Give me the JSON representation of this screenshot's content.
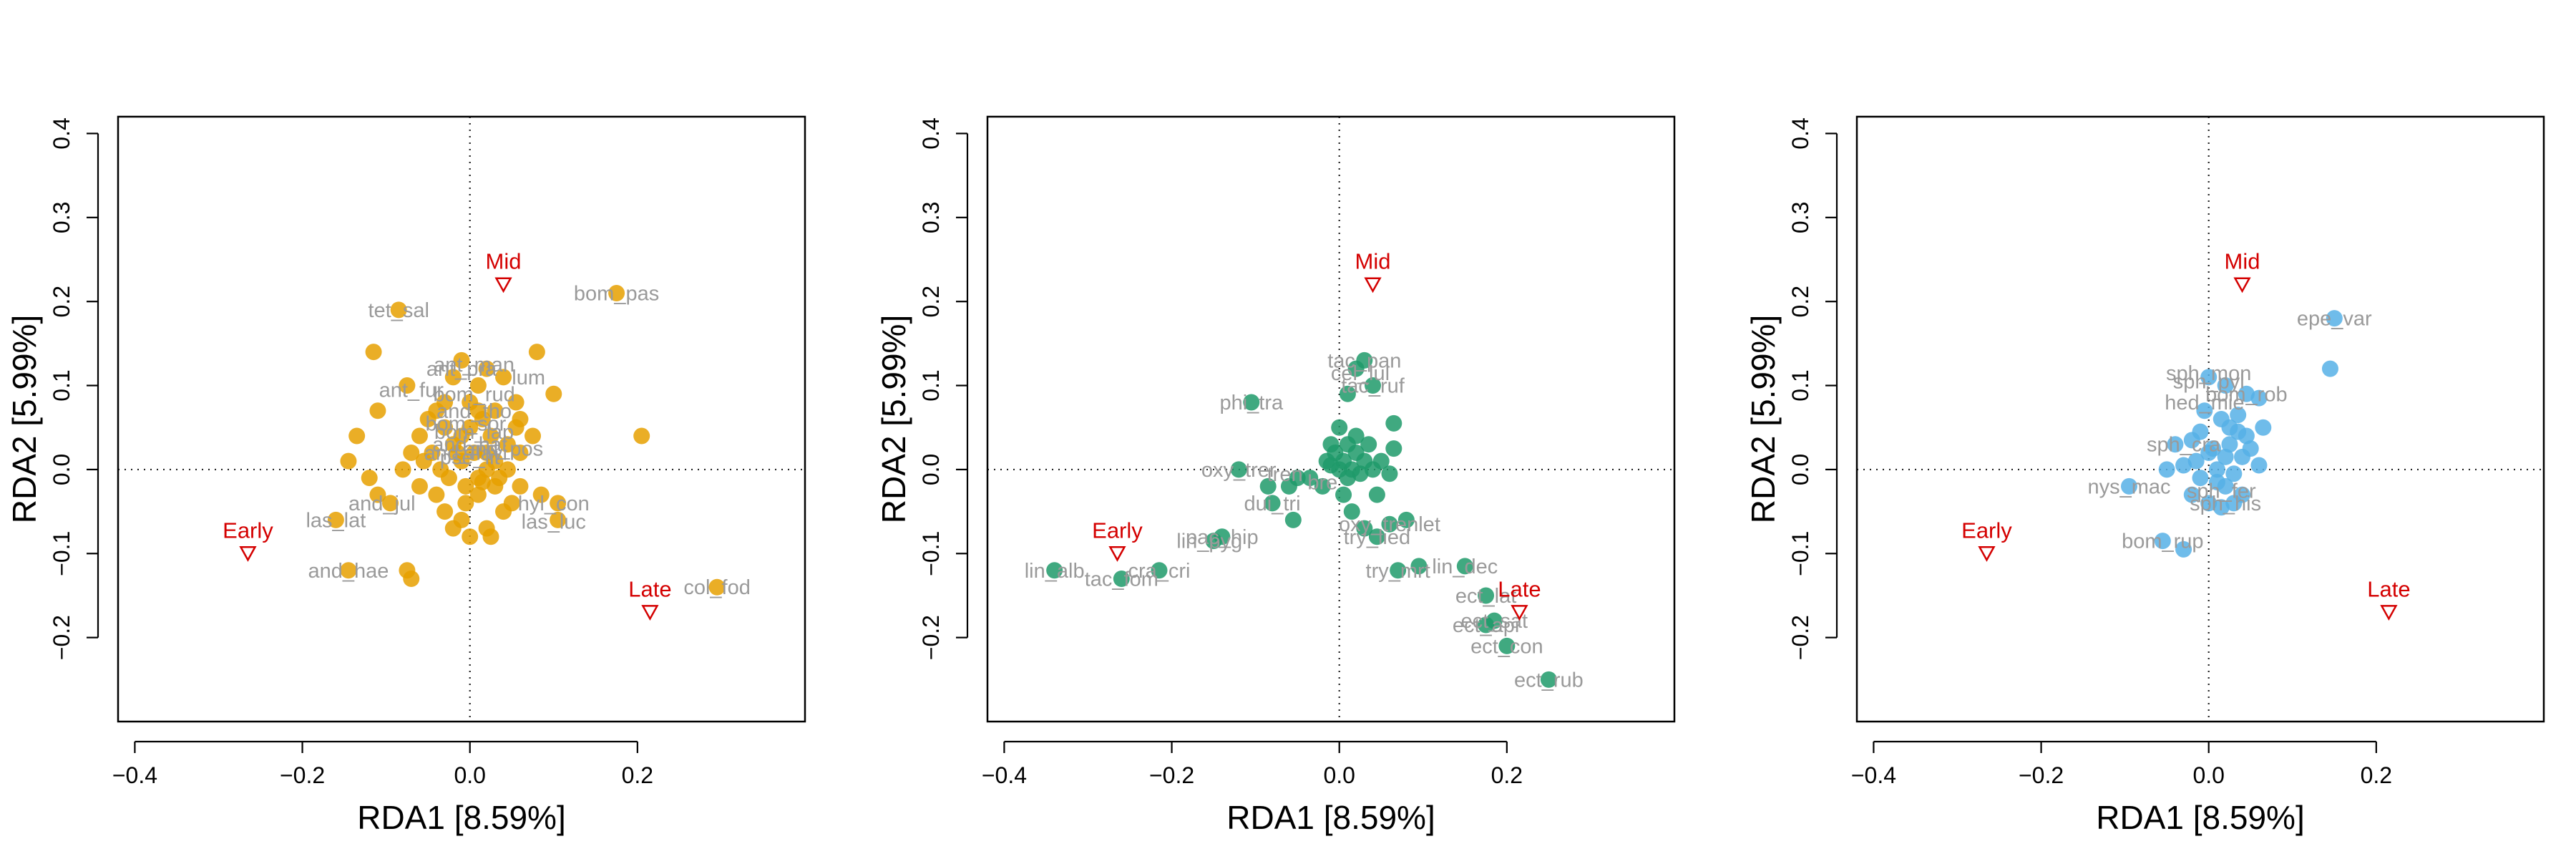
{
  "colors": {
    "site": "#d40000",
    "species_label": "#9a9a9a",
    "axis": "#000000"
  },
  "chart_data": [
    {
      "type": "scatter",
      "xlabel": "RDA1 [8.59%]",
      "ylabel": "RDA2 [5.99%]",
      "xlim": [
        -0.42,
        0.4
      ],
      "ylim": [
        -0.3,
        0.42
      ],
      "xticks": [
        -0.4,
        -0.2,
        0.0,
        0.2
      ],
      "xtick_labels": [
        "−0.4",
        "−0.2",
        "0.0",
        "0.2"
      ],
      "yticks": [
        -0.2,
        -0.1,
        0.0,
        0.1,
        0.2,
        0.3,
        0.4
      ],
      "ytick_labels": [
        "−0.2",
        "−0.1",
        "0.0",
        "0.1",
        "0.2",
        "0.3",
        "0.4"
      ],
      "point_color": "#e6a000",
      "sites": [
        {
          "label": "Early",
          "x": -0.265,
          "y": -0.1
        },
        {
          "label": "Mid",
          "x": 0.04,
          "y": 0.22
        },
        {
          "label": "Late",
          "x": 0.215,
          "y": -0.17
        }
      ],
      "points": [
        [
          -0.085,
          0.19
        ],
        [
          0.175,
          0.21
        ],
        [
          -0.115,
          0.14
        ],
        [
          -0.075,
          0.1
        ],
        [
          -0.11,
          0.07
        ],
        [
          -0.135,
          0.04
        ],
        [
          -0.145,
          0.01
        ],
        [
          -0.12,
          -0.01
        ],
        [
          -0.11,
          -0.03
        ],
        [
          -0.095,
          -0.04
        ],
        [
          -0.16,
          -0.06
        ],
        [
          -0.145,
          -0.12
        ],
        [
          -0.075,
          -0.12
        ],
        [
          -0.07,
          -0.13
        ],
        [
          0.08,
          0.14
        ],
        [
          0.1,
          0.09
        ],
        [
          0.205,
          0.04
        ],
        [
          0.295,
          -0.14
        ],
        [
          0.105,
          -0.04
        ],
        [
          0.105,
          -0.06
        ],
        [
          0.085,
          -0.03
        ],
        [
          0.04,
          0.11
        ],
        [
          0.055,
          0.08
        ],
        [
          0.06,
          0.06
        ],
        [
          0.075,
          0.04
        ],
        [
          0.06,
          0.02
        ],
        [
          0.045,
          0.03
        ],
        [
          0.03,
          0.01
        ],
        [
          0.02,
          0.0
        ],
        [
          0.01,
          -0.01
        ],
        [
          -0.01,
          0.01
        ],
        [
          -0.02,
          0.03
        ],
        [
          -0.03,
          0.05
        ],
        [
          -0.04,
          0.07
        ],
        [
          -0.05,
          0.06
        ],
        [
          -0.06,
          0.04
        ],
        [
          -0.07,
          0.02
        ],
        [
          -0.08,
          0.0
        ],
        [
          -0.06,
          -0.02
        ],
        [
          -0.04,
          -0.03
        ],
        [
          -0.03,
          -0.05
        ],
        [
          -0.02,
          -0.07
        ],
        [
          -0.01,
          -0.06
        ],
        [
          0.0,
          -0.08
        ],
        [
          0.02,
          -0.07
        ],
        [
          0.025,
          -0.08
        ],
        [
          0.04,
          -0.05
        ],
        [
          0.05,
          -0.04
        ],
        [
          0.06,
          -0.02
        ],
        [
          0.03,
          -0.02
        ],
        [
          0.01,
          -0.03
        ],
        [
          -0.005,
          -0.02
        ],
        [
          0.0,
          0.08
        ],
        [
          0.01,
          0.1
        ],
        [
          0.02,
          0.12
        ],
        [
          -0.01,
          0.13
        ],
        [
          -0.02,
          0.11
        ],
        [
          0.0,
          0.05
        ],
        [
          0.015,
          0.06
        ],
        [
          0.025,
          0.04
        ],
        [
          -0.015,
          0.02
        ],
        [
          -0.035,
          0.0
        ],
        [
          0.035,
          -0.01
        ],
        [
          0.005,
          0.02
        ],
        [
          -0.025,
          -0.01
        ],
        [
          0.045,
          0.0
        ],
        [
          -0.045,
          0.02
        ],
        [
          0.015,
          -0.015
        ],
        [
          -0.01,
          0.04
        ],
        [
          0.03,
          0.07
        ],
        [
          -0.03,
          0.08
        ],
        [
          0.055,
          0.05
        ],
        [
          -0.055,
          0.01
        ],
        [
          0.01,
          0.07
        ],
        [
          -0.005,
          -0.04
        ],
        [
          0.02,
          0.02
        ]
      ],
      "species_labels": [
        {
          "text": "tet_sal",
          "x": -0.085,
          "y": 0.19
        },
        {
          "text": "bom_pas",
          "x": 0.175,
          "y": 0.21
        },
        {
          "text": "ant_man",
          "x": 0.005,
          "y": 0.125
        },
        {
          "text": "ant_pra",
          "x": -0.01,
          "y": 0.12
        },
        {
          "text": "lum",
          "x": 0.07,
          "y": 0.11
        },
        {
          "text": "ant_fur",
          "x": -0.07,
          "y": 0.095
        },
        {
          "text": "bom_rud",
          "x": 0.005,
          "y": 0.09
        },
        {
          "text": "and_tho",
          "x": 0.005,
          "y": 0.07
        },
        {
          "text": "bom_sor",
          "x": -0.005,
          "y": 0.055
        },
        {
          "text": "bom_lap",
          "x": 0.005,
          "y": 0.045
        },
        {
          "text": "and_hat",
          "x": 0.0,
          "y": 0.03
        },
        {
          "text": "and_flavi",
          "x": -0.005,
          "y": 0.02
        },
        {
          "text": "and_pos",
          "x": 0.04,
          "y": 0.025
        },
        {
          "text": "pse_lit",
          "x": 0.0,
          "y": 0.015
        },
        {
          "text": "and_jul",
          "x": -0.105,
          "y": -0.04
        },
        {
          "text": "las_lat",
          "x": -0.16,
          "y": -0.06
        },
        {
          "text": "hyl_con",
          "x": 0.1,
          "y": -0.04
        },
        {
          "text": "las_luc",
          "x": 0.1,
          "y": -0.062
        },
        {
          "text": "and_hae",
          "x": -0.145,
          "y": -0.12
        },
        {
          "text": "col_fod",
          "x": 0.295,
          "y": -0.14
        }
      ]
    },
    {
      "type": "scatter",
      "xlabel": "RDA1 [8.59%]",
      "ylabel": "RDA2 [5.99%]",
      "xlim": [
        -0.42,
        0.4
      ],
      "ylim": [
        -0.3,
        0.42
      ],
      "xticks": [
        -0.4,
        -0.2,
        0.0,
        0.2
      ],
      "xtick_labels": [
        "−0.4",
        "−0.2",
        "0.0",
        "0.2"
      ],
      "yticks": [
        -0.2,
        -0.1,
        0.0,
        0.1,
        0.2,
        0.3,
        0.4
      ],
      "ytick_labels": [
        "−0.2",
        "−0.1",
        "0.0",
        "0.1",
        "0.2",
        "0.3",
        "0.4"
      ],
      "point_color": "#1f9a6a",
      "sites": [
        {
          "label": "Early",
          "x": -0.265,
          "y": -0.1
        },
        {
          "label": "Mid",
          "x": 0.04,
          "y": 0.22
        },
        {
          "label": "Late",
          "x": 0.215,
          "y": -0.17
        }
      ],
      "points": [
        [
          -0.105,
          0.08
        ],
        [
          0.03,
          0.13
        ],
        [
          0.02,
          0.12
        ],
        [
          0.04,
          0.1
        ],
        [
          0.01,
          0.09
        ],
        [
          0.0,
          0.05
        ],
        [
          -0.01,
          0.03
        ],
        [
          0.01,
          0.03
        ],
        [
          0.02,
          0.02
        ],
        [
          0.005,
          0.01
        ],
        [
          -0.01,
          0.005
        ],
        [
          0.015,
          0.0
        ],
        [
          0.065,
          0.055
        ],
        [
          0.065,
          0.025
        ],
        [
          0.06,
          -0.005
        ],
        [
          -0.035,
          -0.01
        ],
        [
          -0.05,
          -0.01
        ],
        [
          -0.02,
          -0.02
        ],
        [
          -0.06,
          -0.02
        ],
        [
          -0.085,
          -0.02
        ],
        [
          -0.12,
          0.0
        ],
        [
          -0.08,
          -0.04
        ],
        [
          -0.055,
          -0.06
        ],
        [
          0.015,
          -0.05
        ],
        [
          0.03,
          -0.07
        ],
        [
          0.045,
          -0.08
        ],
        [
          0.06,
          -0.065
        ],
        [
          0.08,
          -0.06
        ],
        [
          0.095,
          -0.115
        ],
        [
          0.07,
          -0.12
        ],
        [
          0.15,
          -0.115
        ],
        [
          0.175,
          -0.15
        ],
        [
          0.175,
          -0.185
        ],
        [
          0.185,
          -0.18
        ],
        [
          0.2,
          -0.21
        ],
        [
          0.25,
          -0.25
        ],
        [
          -0.34,
          -0.12
        ],
        [
          -0.26,
          -0.13
        ],
        [
          -0.215,
          -0.12
        ],
        [
          -0.14,
          -0.08
        ],
        [
          -0.15,
          -0.085
        ],
        [
          0.0,
          0.0
        ],
        [
          0.01,
          -0.01
        ],
        [
          -0.005,
          0.02
        ],
        [
          0.03,
          0.01
        ],
        [
          0.025,
          -0.005
        ],
        [
          0.04,
          0.0
        ],
        [
          0.02,
          0.04
        ],
        [
          0.005,
          -0.03
        ],
        [
          -0.015,
          0.01
        ],
        [
          0.035,
          0.03
        ],
        [
          0.045,
          -0.03
        ],
        [
          0.05,
          0.01
        ]
      ],
      "species_labels": [
        {
          "text": "tac_pan",
          "x": 0.03,
          "y": 0.13
        },
        {
          "text": "cel_lul",
          "x": 0.025,
          "y": 0.115
        },
        {
          "text": "tac_ruf",
          "x": 0.04,
          "y": 0.1
        },
        {
          "text": "phi_tra",
          "x": -0.105,
          "y": 0.08
        },
        {
          "text": "oxy_trer",
          "x": -0.12,
          "y": 0.0
        },
        {
          "text": "tren",
          "x": -0.065,
          "y": -0.005
        },
        {
          "text": "bre",
          "x": -0.02,
          "y": -0.015
        },
        {
          "text": "dui_tri",
          "x": -0.08,
          "y": -0.04
        },
        {
          "text": "lin_alb",
          "x": -0.34,
          "y": -0.12
        },
        {
          "text": "lin_pyg",
          "x": -0.155,
          "y": -0.085
        },
        {
          "text": "pac_hip",
          "x": -0.14,
          "y": -0.08
        },
        {
          "text": "tac_fom",
          "x": -0.26,
          "y": -0.13
        },
        {
          "text": "cra_cri",
          "x": -0.215,
          "y": -0.12
        },
        {
          "text": "oxy_trenlet",
          "x": 0.06,
          "y": -0.065
        },
        {
          "text": "try_lied",
          "x": 0.045,
          "y": -0.08
        },
        {
          "text": "try_mrt",
          "x": 0.07,
          "y": -0.12
        },
        {
          "text": "lin_dec",
          "x": 0.15,
          "y": -0.115
        },
        {
          "text": "ect_lat",
          "x": 0.175,
          "y": -0.15
        },
        {
          "text": "ect_sat",
          "x": 0.185,
          "y": -0.18
        },
        {
          "text": "ect_api",
          "x": 0.175,
          "y": -0.185
        },
        {
          "text": "ect_con",
          "x": 0.2,
          "y": -0.21
        },
        {
          "text": "ect_rub",
          "x": 0.25,
          "y": -0.25
        }
      ]
    },
    {
      "type": "scatter",
      "xlabel": "RDA1 [8.59%]",
      "ylabel": "RDA2 [5.99%]",
      "xlim": [
        -0.42,
        0.4
      ],
      "ylim": [
        -0.3,
        0.42
      ],
      "xticks": [
        -0.4,
        -0.2,
        0.0,
        0.2
      ],
      "xtick_labels": [
        "−0.4",
        "−0.2",
        "0.0",
        "0.2"
      ],
      "yticks": [
        -0.2,
        -0.1,
        0.0,
        0.1,
        0.2,
        0.3,
        0.4
      ],
      "ytick_labels": [
        "−0.2",
        "−0.1",
        "0.0",
        "0.1",
        "0.2",
        "0.3",
        "0.4"
      ],
      "point_color": "#56b0e6",
      "sites": [
        {
          "label": "Early",
          "x": -0.265,
          "y": -0.1
        },
        {
          "label": "Mid",
          "x": 0.04,
          "y": 0.22
        },
        {
          "label": "Late",
          "x": 0.215,
          "y": -0.17
        }
      ],
      "points": [
        [
          0.15,
          0.18
        ],
        [
          0.145,
          0.12
        ],
        [
          0.0,
          0.11
        ],
        [
          0.02,
          0.1
        ],
        [
          0.045,
          0.09
        ],
        [
          0.06,
          0.085
        ],
        [
          -0.005,
          0.07
        ],
        [
          0.015,
          0.06
        ],
        [
          0.025,
          0.05
        ],
        [
          0.035,
          0.045
        ],
        [
          0.045,
          0.04
        ],
        [
          0.065,
          0.05
        ],
        [
          -0.02,
          0.035
        ],
        [
          -0.04,
          0.03
        ],
        [
          0.0,
          0.02
        ],
        [
          0.02,
          0.015
        ],
        [
          0.04,
          0.015
        ],
        [
          0.06,
          0.005
        ],
        [
          -0.03,
          0.005
        ],
        [
          -0.05,
          0.0
        ],
        [
          0.01,
          0.0
        ],
        [
          0.03,
          -0.005
        ],
        [
          -0.01,
          -0.01
        ],
        [
          0.02,
          -0.02
        ],
        [
          0.04,
          -0.03
        ],
        [
          -0.02,
          -0.03
        ],
        [
          0.0,
          -0.04
        ],
        [
          0.015,
          -0.045
        ],
        [
          0.03,
          -0.04
        ],
        [
          -0.095,
          -0.02
        ],
        [
          -0.055,
          -0.085
        ],
        [
          -0.03,
          -0.095
        ],
        [
          0.005,
          0.025
        ],
        [
          0.025,
          0.03
        ],
        [
          -0.01,
          0.045
        ],
        [
          0.05,
          0.025
        ],
        [
          0.01,
          -0.015
        ],
        [
          -0.015,
          0.01
        ],
        [
          0.035,
          0.065
        ]
      ],
      "species_labels": [
        {
          "text": "epe_var",
          "x": 0.15,
          "y": 0.18
        },
        {
          "text": "sph_mon",
          "x": 0.0,
          "y": 0.115
        },
        {
          "text": "sph_pyl",
          "x": 0.0,
          "y": 0.105
        },
        {
          "text": "bom_rob",
          "x": 0.045,
          "y": 0.09
        },
        {
          "text": "hed_mie",
          "x": -0.005,
          "y": 0.08
        },
        {
          "text": "sph_cra",
          "x": -0.03,
          "y": 0.03
        },
        {
          "text": "nys_mac",
          "x": -0.095,
          "y": -0.02
        },
        {
          "text": "sph_fer",
          "x": 0.015,
          "y": -0.025
        },
        {
          "text": "sph_his",
          "x": 0.02,
          "y": -0.04
        },
        {
          "text": "bom_rup",
          "x": -0.055,
          "y": -0.085
        }
      ]
    }
  ]
}
